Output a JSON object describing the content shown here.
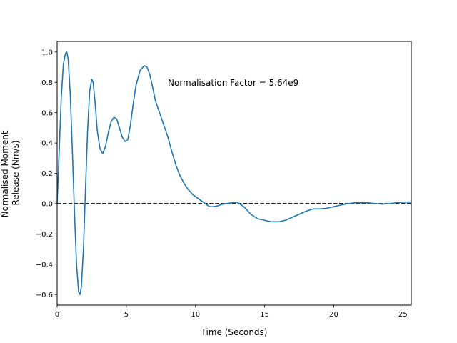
{
  "chart_data": {
    "type": "line",
    "xlabel": "Time (Seconds)",
    "ylabel_lines": [
      "Normalised Moment",
      "Release (Nm/s)"
    ],
    "annotation": {
      "text": "Normalisation Factor = 5.64e9",
      "x": 8.0,
      "y": 0.8
    },
    "xlim": [
      0,
      25.6
    ],
    "ylim": [
      -0.67,
      1.07
    ],
    "xticks": [
      0,
      5,
      10,
      15,
      20,
      25
    ],
    "xtick_labels": [
      "0",
      "5",
      "10",
      "15",
      "20",
      "25"
    ],
    "yticks": [
      -0.6,
      -0.4,
      -0.2,
      0.0,
      0.2,
      0.4,
      0.6,
      0.8,
      1.0
    ],
    "ytick_labels": [
      "−0.6",
      "−0.4",
      "−0.2",
      "0.0",
      "0.2",
      "0.4",
      "0.6",
      "0.8",
      "1.0"
    ],
    "grid": false,
    "reference_line": {
      "y": 0.0,
      "style": "dashed",
      "color": "#000000"
    },
    "series": [
      {
        "color": "#1f77b4",
        "x": [
          0,
          0.15,
          0.3,
          0.45,
          0.6,
          0.7,
          0.8,
          0.95,
          1.1,
          1.25,
          1.4,
          1.55,
          1.65,
          1.75,
          1.9,
          2.05,
          2.2,
          2.35,
          2.5,
          2.6,
          2.75,
          2.9,
          3.1,
          3.3,
          3.5,
          3.7,
          3.9,
          4.1,
          4.3,
          4.5,
          4.7,
          4.9,
          5.1,
          5.3,
          5.5,
          5.7,
          6.0,
          6.3,
          6.5,
          6.7,
          6.9,
          7.1,
          7.4,
          7.7,
          8.0,
          8.3,
          8.6,
          8.9,
          9.2,
          9.5,
          9.8,
          10.1,
          10.4,
          10.7,
          11.0,
          11.3,
          11.6,
          11.9,
          12.2,
          12.6,
          13.0,
          13.5,
          14.0,
          14.5,
          15.0,
          15.5,
          16.0,
          16.5,
          17.0,
          17.5,
          18.0,
          18.5,
          19.0,
          19.5,
          20.0,
          20.5,
          21.0,
          21.5,
          22.0,
          22.5,
          23.0,
          23.5,
          24.0,
          24.5,
          25.0,
          25.6
        ],
        "y": [
          0.0,
          0.35,
          0.7,
          0.92,
          0.99,
          1.0,
          0.95,
          0.72,
          0.35,
          -0.05,
          -0.4,
          -0.58,
          -0.6,
          -0.55,
          -0.3,
          0.1,
          0.48,
          0.74,
          0.82,
          0.8,
          0.66,
          0.48,
          0.36,
          0.33,
          0.38,
          0.47,
          0.54,
          0.57,
          0.56,
          0.5,
          0.44,
          0.41,
          0.42,
          0.52,
          0.66,
          0.78,
          0.88,
          0.91,
          0.9,
          0.85,
          0.77,
          0.68,
          0.6,
          0.52,
          0.44,
          0.34,
          0.25,
          0.18,
          0.13,
          0.09,
          0.06,
          0.04,
          0.02,
          0.0,
          -0.02,
          -0.02,
          -0.015,
          -0.005,
          0.0,
          0.005,
          0.01,
          -0.02,
          -0.07,
          -0.1,
          -0.11,
          -0.12,
          -0.12,
          -0.11,
          -0.09,
          -0.07,
          -0.05,
          -0.035,
          -0.035,
          -0.03,
          -0.02,
          -0.01,
          0.0,
          0.005,
          0.005,
          0.005,
          0.0,
          -0.003,
          0.0,
          0.005,
          0.01,
          0.01
        ]
      }
    ]
  }
}
